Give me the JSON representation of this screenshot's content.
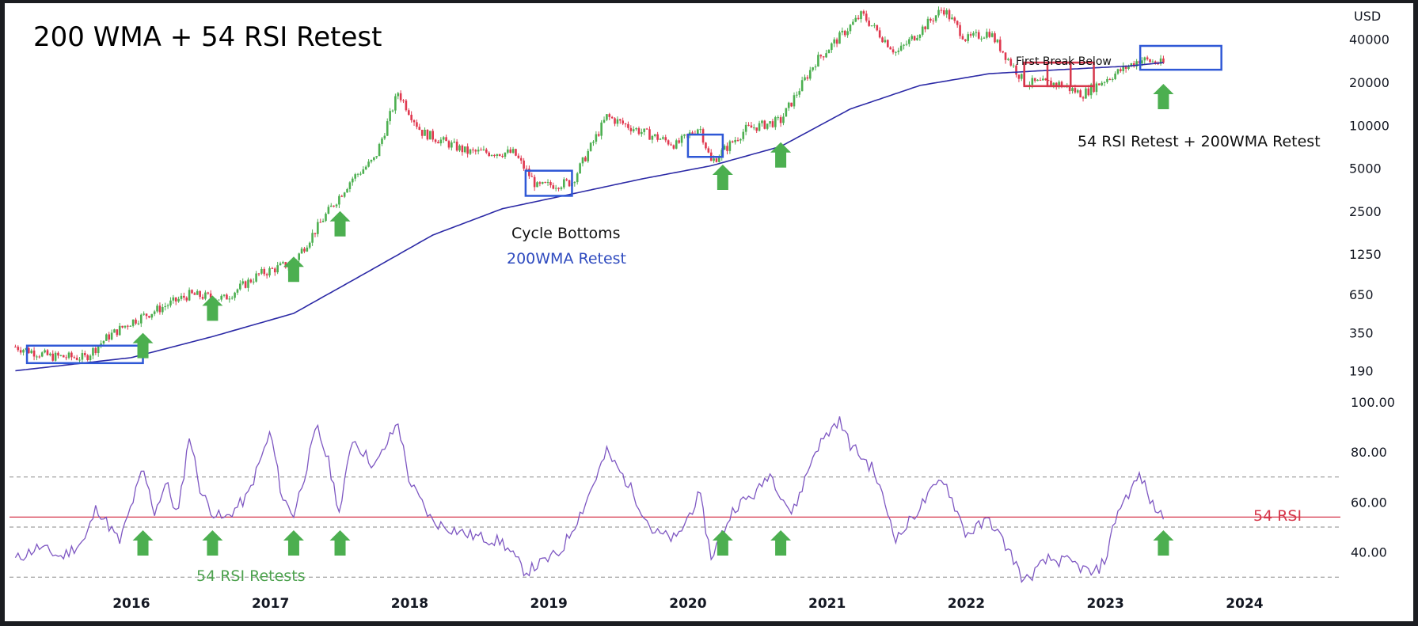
{
  "title": "200 WMA + 54 RSI Retest",
  "currency_label": "USD",
  "annotations": {
    "first_break": "First Break Below",
    "rsi_wma_retest": "54 RSI Retest + 200WMA Retest",
    "cycle_bottoms": "Cycle Bottoms",
    "wma_retest": "200WMA Retest",
    "rsi_retests": "54 RSI Retests",
    "rsi_line": "54 RSI"
  },
  "colors": {
    "up": "#4caf50",
    "down": "#e0384f",
    "wma": "#2c2aa6",
    "rsi": "#7e57c2",
    "rsi54": "#d6374b",
    "box_blue": "#2f58d6",
    "box_red": "#d6374b",
    "arrow": "#4caf50"
  },
  "chart_data": [
    {
      "type": "candlestick",
      "title": "200 WMA + 54 RSI Retest",
      "scale": "log",
      "ylabel": "USD",
      "y_ticks": [
        190,
        350,
        650,
        1250,
        2500,
        5000,
        10000,
        20000,
        40000
      ],
      "ylim": [
        150,
        60000
      ],
      "x_ticks": [
        "2016",
        "2017",
        "2018",
        "2019",
        "2020",
        "2021",
        "2022",
        "2023",
        "2024"
      ],
      "price_path": [
        [
          "2015-03",
          280
        ],
        [
          "2015-06",
          240
        ],
        [
          "2015-09",
          235
        ],
        [
          "2015-11",
          330
        ],
        [
          "2016-01",
          420
        ],
        [
          "2016-06",
          650
        ],
        [
          "2016-09",
          610
        ],
        [
          "2016-12",
          900
        ],
        [
          "2017-03",
          1100
        ],
        [
          "2017-06",
          2500
        ],
        [
          "2017-08",
          4200
        ],
        [
          "2017-10",
          5800
        ],
        [
          "2017-12",
          17000
        ],
        [
          "2018-02",
          9000
        ],
        [
          "2018-06",
          6500
        ],
        [
          "2018-10",
          6400
        ],
        [
          "2018-12",
          3700
        ],
        [
          "2019-03",
          4000
        ],
        [
          "2019-06",
          11500
        ],
        [
          "2019-09",
          9000
        ],
        [
          "2019-12",
          7300
        ],
        [
          "2020-02",
          9800
        ],
        [
          "2020-03",
          5500
        ],
        [
          "2020-06",
          9400
        ],
        [
          "2020-09",
          10800
        ],
        [
          "2020-12",
          28000
        ],
        [
          "2021-04",
          60000
        ],
        [
          "2021-07",
          32000
        ],
        [
          "2021-11",
          66000
        ],
        [
          "2022-01",
          40000
        ],
        [
          "2022-03",
          45000
        ],
        [
          "2022-06",
          20000
        ],
        [
          "2022-09",
          19500
        ],
        [
          "2022-11",
          16500
        ],
        [
          "2023-01",
          21000
        ],
        [
          "2023-04",
          29000
        ],
        [
          "2023-06",
          27000
        ]
      ],
      "wma_200_path": [
        [
          "2015-03",
          190
        ],
        [
          "2016-01",
          235
        ],
        [
          "2016-08",
          330
        ],
        [
          "2017-03",
          480
        ],
        [
          "2017-09",
          900
        ],
        [
          "2018-03",
          1700
        ],
        [
          "2018-09",
          2600
        ],
        [
          "2019-03",
          3300
        ],
        [
          "2019-09",
          4200
        ],
        [
          "2020-03",
          5200
        ],
        [
          "2020-09",
          7100
        ],
        [
          "2021-03",
          13000
        ],
        [
          "2021-09",
          19000
        ],
        [
          "2022-03",
          23000
        ],
        [
          "2022-09",
          24500
        ],
        [
          "2023-03",
          26000
        ],
        [
          "2023-06",
          27500
        ]
      ]
    },
    {
      "type": "line",
      "series": [
        {
          "name": "RSI",
          "points": [
            [
              "2015-03",
              37
            ],
            [
              "2015-05",
              42
            ],
            [
              "2015-07",
              38
            ],
            [
              "2015-09",
              45
            ],
            [
              "2015-10",
              58
            ],
            [
              "2015-12",
              44
            ],
            [
              "2016-02",
              73
            ],
            [
              "2016-03",
              56
            ],
            [
              "2016-04",
              68
            ],
            [
              "2016-05",
              54
            ],
            [
              "2016-06",
              87
            ],
            [
              "2016-07",
              64
            ],
            [
              "2016-08",
              56
            ],
            [
              "2016-09",
              53
            ],
            [
              "2016-11",
              62
            ],
            [
              "2017-01",
              88
            ],
            [
              "2017-02",
              62
            ],
            [
              "2017-03",
              55
            ],
            [
              "2017-04",
              72
            ],
            [
              "2017-05",
              90
            ],
            [
              "2017-06",
              76
            ],
            [
              "2017-07",
              55
            ],
            [
              "2017-08",
              86
            ],
            [
              "2017-10",
              74
            ],
            [
              "2017-12",
              92
            ],
            [
              "2018-01",
              68
            ],
            [
              "2018-03",
              52
            ],
            [
              "2018-06",
              47
            ],
            [
              "2018-09",
              44
            ],
            [
              "2018-11",
              32
            ],
            [
              "2019-02",
              40
            ],
            [
              "2019-04",
              58
            ],
            [
              "2019-06",
              80
            ],
            [
              "2019-08",
              66
            ],
            [
              "2019-10",
              48
            ],
            [
              "2019-12",
              45
            ],
            [
              "2020-02",
              63
            ],
            [
              "2020-03",
              38
            ],
            [
              "2020-05",
              58
            ],
            [
              "2020-07",
              64
            ],
            [
              "2020-08",
              72
            ],
            [
              "2020-10",
              55
            ],
            [
              "2020-12",
              81
            ],
            [
              "2021-02",
              93
            ],
            [
              "2021-03",
              83
            ],
            [
              "2021-05",
              73
            ],
            [
              "2021-07",
              45
            ],
            [
              "2021-09",
              58
            ],
            [
              "2021-11",
              70
            ],
            [
              "2022-01",
              47
            ],
            [
              "2022-03",
              53
            ],
            [
              "2022-05",
              38
            ],
            [
              "2022-06",
              28
            ],
            [
              "2022-08",
              37
            ],
            [
              "2022-10",
              36
            ],
            [
              "2022-12",
              31
            ],
            [
              "2023-01",
              37
            ],
            [
              "2023-02",
              56
            ],
            [
              "2023-04",
              71
            ],
            [
              "2023-05",
              59
            ],
            [
              "2023-06",
              54
            ]
          ]
        }
      ],
      "y_ticks": [
        40,
        60,
        80,
        100
      ],
      "ylim": [
        25,
        100
      ],
      "reference_lines": [
        30,
        50,
        54,
        70
      ],
      "x_ticks": [
        "2016",
        "2017",
        "2018",
        "2019",
        "2020",
        "2021",
        "2022",
        "2023",
        "2024"
      ]
    }
  ]
}
